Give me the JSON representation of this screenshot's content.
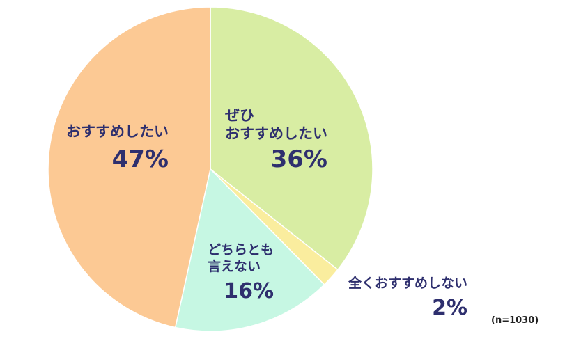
{
  "chart_data": {
    "type": "pie",
    "slices": [
      {
        "label_lines": [
          "おすすめしたい"
        ],
        "value": 47,
        "value_label": "47%",
        "color": "#fcc994"
      },
      {
        "label_lines": [
          "ぜひ",
          "おすすめしたい"
        ],
        "value": 36,
        "value_label": "36%",
        "color": "#d8eda3"
      },
      {
        "label_lines": [
          "全くおすすめしない"
        ],
        "value": 2,
        "value_label": "2%",
        "color": "#faed9e"
      },
      {
        "label_lines": [
          "どちらとも",
          "言えない"
        ],
        "value": 16,
        "value_label": "16%",
        "color": "#c6f7e3"
      }
    ],
    "start_angle_deg": 0,
    "direction": "clockwise",
    "sample_size": "(n=1030)"
  }
}
